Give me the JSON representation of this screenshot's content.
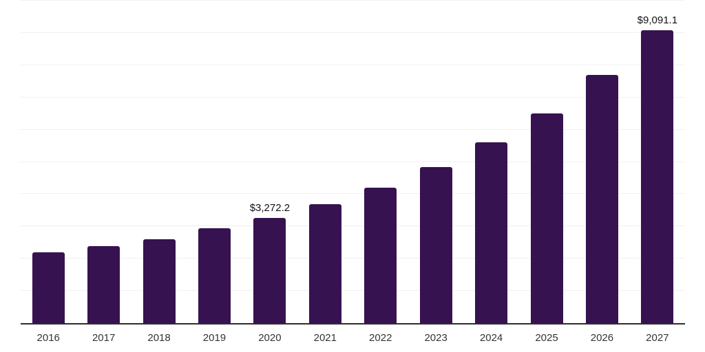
{
  "chart": {
    "background": "#ffffff",
    "bar_color": "#371250",
    "grid_color": "#f0f0f0",
    "axis_color": "#2d2d2d",
    "tick_label_color": "#333333",
    "data_label_color": "#111111"
  },
  "chart_data": {
    "type": "bar",
    "title": "",
    "xlabel": "",
    "ylabel": "",
    "categories": [
      "2016",
      "2017",
      "2018",
      "2019",
      "2020",
      "2021",
      "2022",
      "2023",
      "2024",
      "2025",
      "2026",
      "2027"
    ],
    "values": [
      2200,
      2380,
      2610,
      2940,
      3272.2,
      3680,
      4210,
      4830,
      5600,
      6510,
      7690,
      9091.1
    ],
    "data_labels": [
      "",
      "",
      "",
      "",
      "$3,272.2",
      "",
      "",
      "",
      "",
      "",
      "",
      "$9,091.1"
    ],
    "ylim": [
      0,
      10000
    ],
    "grid_interval": 1000,
    "grid": "horizontal-only",
    "y_axis_tick_labels": "none",
    "legend": "none"
  }
}
